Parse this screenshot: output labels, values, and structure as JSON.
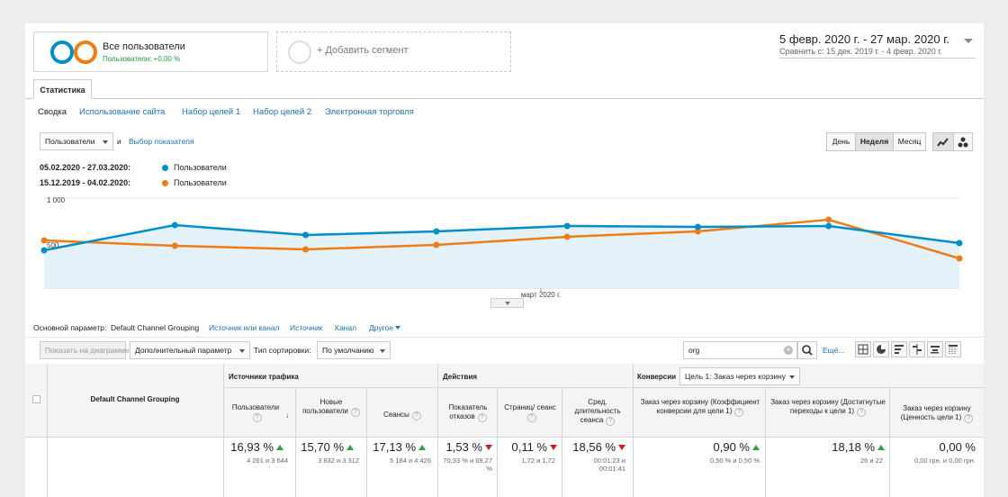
{
  "segment": {
    "title": "Все пользователи",
    "subtitle": "Пользователи: +0,00 %",
    "add_label": "+ Добавить сегмент"
  },
  "colors": {
    "primary": "#058dc7",
    "comparison": "#ed7e17",
    "link": "#1a73b8",
    "up": "#2e9e3e",
    "down": "#d31b1b"
  },
  "date": {
    "range": "5 февр. 2020 г. - 27 мар. 2020 г.",
    "compare": "Сравнить с: 15 дек. 2019 г. - 4 февр. 2020 г."
  },
  "tab": "Статистика",
  "subnav": [
    "Сводка",
    "Использование сайта",
    "Набор целей 1",
    "Набор целей 2",
    "Электронная торговля"
  ],
  "metric": {
    "selected": "Пользователи",
    "and": "и",
    "choose": "Выбор показателя"
  },
  "granularity": {
    "day": "День",
    "week": "Неделя",
    "month": "Месяц",
    "active": "week"
  },
  "legend": [
    {
      "range": "05.02.2020 - 27.03.2020:",
      "name": "Пользователи"
    },
    {
      "range": "15.12.2019 - 04.02.2020:",
      "name": "Пользователи"
    }
  ],
  "chart_data": {
    "type": "line",
    "y_ticks": [
      "1 000",
      "500"
    ],
    "ylim": [
      0,
      1000
    ],
    "x_label": "март 2020 г.",
    "series": [
      {
        "name": "Пользователи",
        "values": [
          420,
          700,
          590,
          630,
          690,
          680,
          690,
          500
        ]
      },
      {
        "name": "Пользователи",
        "values": [
          530,
          470,
          430,
          480,
          570,
          630,
          760,
          330
        ]
      }
    ]
  },
  "dimension": {
    "label": "Основной параметр:",
    "active": "Default Channel Grouping",
    "others": [
      "Источник или канал",
      "Источник",
      "Канал"
    ],
    "more": "Другое"
  },
  "toolbar": {
    "plot_rows": "Показать на диаграмме",
    "secondary": "Дополнительный параметр",
    "sort_label": "Тип сортировки:",
    "sort_value": "По умолчанию",
    "search": "org",
    "more": "Ещё..."
  },
  "table": {
    "dim_header": "Default Channel Grouping",
    "groups": {
      "acquisition": "Источники трафика",
      "behavior": "Действия",
      "conversions": "Конверсии",
      "goal": "Цель 1: Заказ через корзину"
    },
    "columns": [
      {
        "label": "Пользователи",
        "value": "16,93 %",
        "trend": "up",
        "sub": "4 261 и 3 644"
      },
      {
        "label": "Новые пользователи",
        "value": "15,70 %",
        "trend": "up",
        "sub": "3 832 и 3 312"
      },
      {
        "label": "Сеансы",
        "value": "17,13 %",
        "trend": "up",
        "sub": "5 184 и 4 426"
      },
      {
        "label": "Показатель отказов",
        "value": "1,53 %",
        "trend": "down",
        "sub": "70,33 % и 69,27 %"
      },
      {
        "label": "Страниц/ сеанс",
        "value": "0,11 %",
        "trend": "down",
        "sub": "1,72 и 1,72"
      },
      {
        "label": "Сред. длительность сеанса",
        "value": "18,56 %",
        "trend": "down",
        "sub": "00:01:23 и 00:01:41"
      },
      {
        "label": "Заказ через корзину (Коэффициент конверсии для цели 1)",
        "value": "0,90 %",
        "trend": "up",
        "sub": "0,50 % и 0,50 %"
      },
      {
        "label": "Заказ через корзину (Достигнутые переходы к цели 1)",
        "value": "18,18 %",
        "trend": "up",
        "sub": "26 и 22"
      },
      {
        "label": "Заказ через корзину (Ценность цели 1)",
        "value": "0,00 %",
        "trend": "none",
        "sub": "0,00 грн. и 0,00 грн."
      }
    ]
  }
}
